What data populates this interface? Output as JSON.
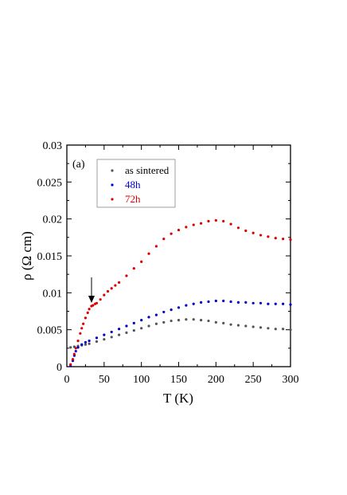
{
  "chart_data": {
    "type": "scatter",
    "panel_label": "(a)",
    "xlabel": "T (K)",
    "ylabel": "ρ  (Ω cm)",
    "xlim": [
      0,
      300
    ],
    "ylim": [
      0,
      0.03
    ],
    "x_ticks": [
      "0",
      "50",
      "100",
      "150",
      "200",
      "250",
      "300"
    ],
    "y_ticks": [
      "0",
      "0.005",
      "0.01",
      "0.015",
      "0.02",
      "0.025",
      "0.03"
    ],
    "grid": false,
    "legend_position": "top-left",
    "annotation": "down arrow marking the kink near T ≈ 33 K on the 72h curve",
    "series": [
      {
        "name": "as sintered",
        "color": "#555555",
        "points": [
          [
            5,
            0.0026
          ],
          [
            10,
            0.0027
          ],
          [
            15,
            0.0028
          ],
          [
            20,
            0.0029
          ],
          [
            25,
            0.003
          ],
          [
            30,
            0.0031
          ],
          [
            40,
            0.0034
          ],
          [
            50,
            0.0037
          ],
          [
            60,
            0.004
          ],
          [
            70,
            0.0043
          ],
          [
            80,
            0.0046
          ],
          [
            90,
            0.0049
          ],
          [
            100,
            0.0052
          ],
          [
            110,
            0.0055
          ],
          [
            120,
            0.0058
          ],
          [
            130,
            0.006
          ],
          [
            140,
            0.0062
          ],
          [
            150,
            0.0063
          ],
          [
            160,
            0.0064
          ],
          [
            170,
            0.0064
          ],
          [
            180,
            0.0063
          ],
          [
            190,
            0.0062
          ],
          [
            200,
            0.006
          ],
          [
            210,
            0.0059
          ],
          [
            220,
            0.0057
          ],
          [
            230,
            0.0056
          ],
          [
            240,
            0.0055
          ],
          [
            250,
            0.0054
          ],
          [
            260,
            0.0053
          ],
          [
            270,
            0.0052
          ],
          [
            280,
            0.0051
          ],
          [
            290,
            0.0051
          ],
          [
            300,
            0.005
          ]
        ]
      },
      {
        "name": "48h",
        "color": "#0000cc",
        "points": [
          [
            5,
            0.0001
          ],
          [
            8,
            0.0008
          ],
          [
            10,
            0.0015
          ],
          [
            12,
            0.0021
          ],
          [
            15,
            0.0026
          ],
          [
            20,
            0.003
          ],
          [
            25,
            0.0033
          ],
          [
            30,
            0.0035
          ],
          [
            40,
            0.0039
          ],
          [
            50,
            0.0043
          ],
          [
            60,
            0.0047
          ],
          [
            70,
            0.0051
          ],
          [
            80,
            0.0055
          ],
          [
            90,
            0.0059
          ],
          [
            100,
            0.0063
          ],
          [
            110,
            0.0067
          ],
          [
            120,
            0.007
          ],
          [
            130,
            0.0074
          ],
          [
            140,
            0.0077
          ],
          [
            150,
            0.008
          ],
          [
            160,
            0.0083
          ],
          [
            170,
            0.0085
          ],
          [
            180,
            0.0087
          ],
          [
            190,
            0.0088
          ],
          [
            200,
            0.0089
          ],
          [
            210,
            0.0089
          ],
          [
            220,
            0.0088
          ],
          [
            230,
            0.0087
          ],
          [
            240,
            0.0087
          ],
          [
            250,
            0.0086
          ],
          [
            260,
            0.0086
          ],
          [
            270,
            0.0085
          ],
          [
            280,
            0.0085
          ],
          [
            290,
            0.0085
          ],
          [
            300,
            0.0084
          ]
        ]
      },
      {
        "name": "72h",
        "color": "#dd0000",
        "points": [
          [
            5,
            0.0003
          ],
          [
            8,
            0.001
          ],
          [
            10,
            0.0017
          ],
          [
            12,
            0.0025
          ],
          [
            15,
            0.0035
          ],
          [
            18,
            0.0045
          ],
          [
            20,
            0.0052
          ],
          [
            22,
            0.0058
          ],
          [
            25,
            0.0066
          ],
          [
            28,
            0.0073
          ],
          [
            30,
            0.0078
          ],
          [
            33,
            0.0082
          ],
          [
            35,
            0.0083
          ],
          [
            38,
            0.0085
          ],
          [
            40,
            0.0086
          ],
          [
            45,
            0.0091
          ],
          [
            50,
            0.0097
          ],
          [
            55,
            0.0102
          ],
          [
            60,
            0.0106
          ],
          [
            65,
            0.011
          ],
          [
            70,
            0.0114
          ],
          [
            80,
            0.0123
          ],
          [
            90,
            0.0133
          ],
          [
            100,
            0.0142
          ],
          [
            110,
            0.0153
          ],
          [
            120,
            0.0163
          ],
          [
            130,
            0.0173
          ],
          [
            140,
            0.018
          ],
          [
            150,
            0.0185
          ],
          [
            160,
            0.0189
          ],
          [
            170,
            0.0192
          ],
          [
            180,
            0.0194
          ],
          [
            190,
            0.0197
          ],
          [
            200,
            0.0198
          ],
          [
            210,
            0.0197
          ],
          [
            220,
            0.0193
          ],
          [
            230,
            0.0188
          ],
          [
            240,
            0.0184
          ],
          [
            250,
            0.0181
          ],
          [
            260,
            0.0178
          ],
          [
            270,
            0.0176
          ],
          [
            280,
            0.0174
          ],
          [
            290,
            0.0173
          ],
          [
            300,
            0.0172
          ]
        ]
      }
    ]
  }
}
